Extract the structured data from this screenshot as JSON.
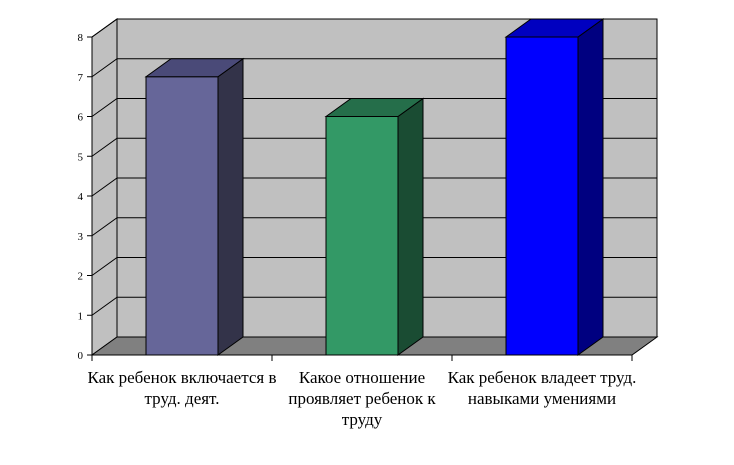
{
  "chart_data": {
    "type": "bar",
    "title": "",
    "xlabel": "",
    "ylabel": "",
    "ylim": [
      0,
      8
    ],
    "yticks": [
      0,
      1,
      2,
      3,
      4,
      5,
      6,
      7,
      8
    ],
    "grid": true,
    "legend": "none",
    "categories": [
      "Как ребенок включается в труд. деят.",
      "Какое отношение проявляет ребенок к труду",
      "Как ребенок владеет труд. навыками умениями"
    ],
    "values": [
      7,
      6,
      8
    ],
    "colors": [
      "#666699",
      "#339966",
      "#0000ff"
    ],
    "side_colors": [
      "#333349",
      "#1a4c33",
      "#000080"
    ],
    "top_colors": [
      "#4a4a78",
      "#256e4a",
      "#0000c0"
    ],
    "wall_color": "#c0c0c0",
    "floor_color": "#808080"
  }
}
